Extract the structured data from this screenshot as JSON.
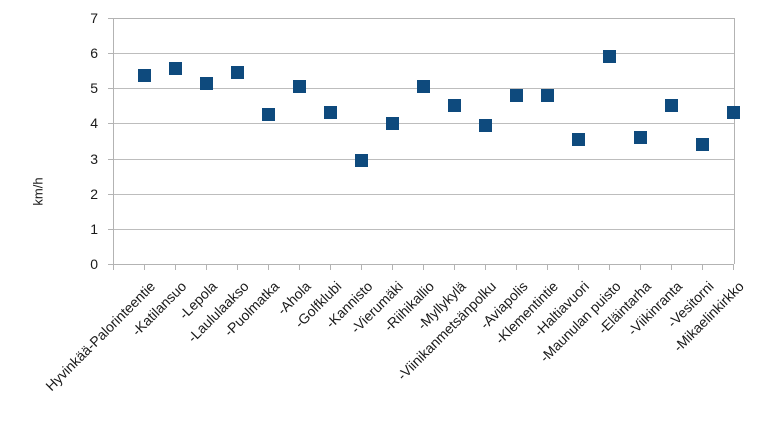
{
  "chart_data": {
    "type": "scatter",
    "title": "",
    "xlabel": "",
    "ylabel": "km/h",
    "ylim": [
      0,
      7
    ],
    "y_ticks": [
      0,
      1,
      2,
      3,
      4,
      5,
      6,
      7
    ],
    "grid": "horizontal",
    "legend": false,
    "marker": "square",
    "categories": [
      "Hyvinkää-Palorinteentie",
      "-Katilansuo",
      "-Lepola",
      "-Laululaakso",
      "-Puolmatka",
      "-Ahola",
      "-Golfklubi",
      "-Kannisto",
      "-Vierumäki",
      "-Riihikallio",
      "-Myllykylä",
      "-Viinikanmetsänpolku",
      "-Aviapolis",
      "-Klementintie",
      "-Haltiavuori",
      "-Maunulan puisto",
      "-Eläintarha",
      "-Viikinranta",
      "-Vesitorni",
      "-Mikaelinkirkko"
    ],
    "values": [
      5.35,
      5.55,
      5.15,
      5.45,
      4.25,
      5.05,
      4.3,
      2.95,
      4.0,
      5.05,
      4.5,
      3.95,
      4.8,
      4.8,
      3.55,
      5.9,
      3.6,
      4.5,
      3.4,
      4.3
    ],
    "colors": {
      "marker": "#0e4a7d",
      "gridline": "#bdbdbd",
      "axis": "#b3b3b3",
      "text": "#1a1a1a",
      "background": "#ffffff"
    }
  }
}
